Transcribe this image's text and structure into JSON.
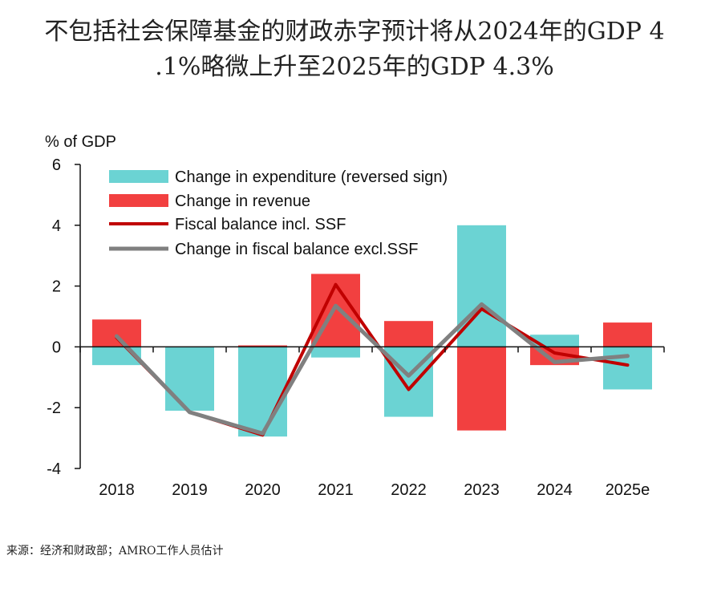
{
  "title_line1": "不包括社会保障基金的财政赤字预计将从2024年的GDP 4",
  "title_line2": ".1%略微上升至2025年的GDP 4.3%",
  "source": "来源：经济和财政部；AMRO工作人员估计",
  "chart_data": {
    "type": "bar",
    "ylabel": "% of GDP",
    "ylim": [
      -4,
      6
    ],
    "yticks": [
      -4,
      -2,
      0,
      2,
      4,
      6
    ],
    "categories": [
      "2018",
      "2019",
      "2020",
      "2021",
      "2022",
      "2023",
      "2024",
      "2025e"
    ],
    "legend_position": "top-left",
    "series": [
      {
        "name": "Change in expenditure (reversed sign)",
        "kind": "bar",
        "color": "#6bd3d3",
        "values": [
          -0.6,
          -2.1,
          -2.95,
          -0.35,
          -2.3,
          4.0,
          0.4,
          -1.4
        ]
      },
      {
        "name": "Change in revenue",
        "kind": "bar",
        "color": "#f24040",
        "values": [
          0.9,
          0.0,
          0.05,
          2.4,
          0.85,
          -2.75,
          -0.6,
          0.8
        ]
      },
      {
        "name": "Fiscal balance incl. SSF",
        "kind": "line",
        "color": "#c00000",
        "values": [
          0.3,
          -2.15,
          -2.9,
          2.05,
          -1.4,
          1.25,
          -0.2,
          -0.6
        ]
      },
      {
        "name": "Change in fiscal balance excl.SSF",
        "kind": "line",
        "color": "#808080",
        "values": [
          0.35,
          -2.15,
          -2.85,
          1.35,
          -0.95,
          1.4,
          -0.5,
          -0.3
        ]
      }
    ]
  }
}
